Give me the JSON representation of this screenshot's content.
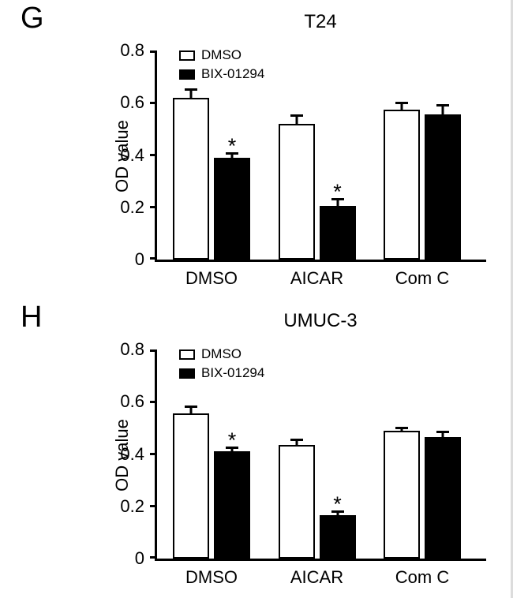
{
  "figure": {
    "panels": [
      {
        "label": "G"
      },
      {
        "label": "H"
      }
    ]
  },
  "chart_data": [
    {
      "type": "bar",
      "title": "T24",
      "ylabel": "OD value",
      "xlabel": "",
      "ylim": [
        0,
        0.8
      ],
      "yticks": [
        0,
        0.2,
        0.4,
        0.6,
        0.8
      ],
      "grid": false,
      "legend_position": "top-left-inside",
      "categories": [
        "DMSO",
        "AICAR",
        "Com C"
      ],
      "series": [
        {
          "name": "DMSO",
          "fill": "#ffffff",
          "values": [
            0.62,
            0.52,
            0.575
          ],
          "errors": [
            0.035,
            0.035,
            0.03
          ],
          "sig": [
            "",
            "",
            ""
          ]
        },
        {
          "name": "BIX-01294",
          "fill": "#000000",
          "values": [
            0.39,
            0.205,
            0.555
          ],
          "errors": [
            0.02,
            0.03,
            0.04
          ],
          "sig": [
            "*",
            "*",
            ""
          ]
        }
      ]
    },
    {
      "type": "bar",
      "title": "UMUC-3",
      "ylabel": "OD value",
      "xlabel": "",
      "ylim": [
        0,
        0.8
      ],
      "yticks": [
        0,
        0.2,
        0.4,
        0.6,
        0.8
      ],
      "grid": false,
      "legend_position": "top-left-inside",
      "categories": [
        "DMSO",
        "AICAR",
        "Com C"
      ],
      "series": [
        {
          "name": "DMSO",
          "fill": "#ffffff",
          "values": [
            0.555,
            0.435,
            0.49
          ],
          "errors": [
            0.03,
            0.025,
            0.015
          ],
          "sig": [
            "",
            "",
            ""
          ]
        },
        {
          "name": "BIX-01294",
          "fill": "#000000",
          "values": [
            0.41,
            0.165,
            0.465
          ],
          "errors": [
            0.02,
            0.02,
            0.025
          ],
          "sig": [
            "*",
            "*",
            ""
          ]
        }
      ]
    }
  ]
}
